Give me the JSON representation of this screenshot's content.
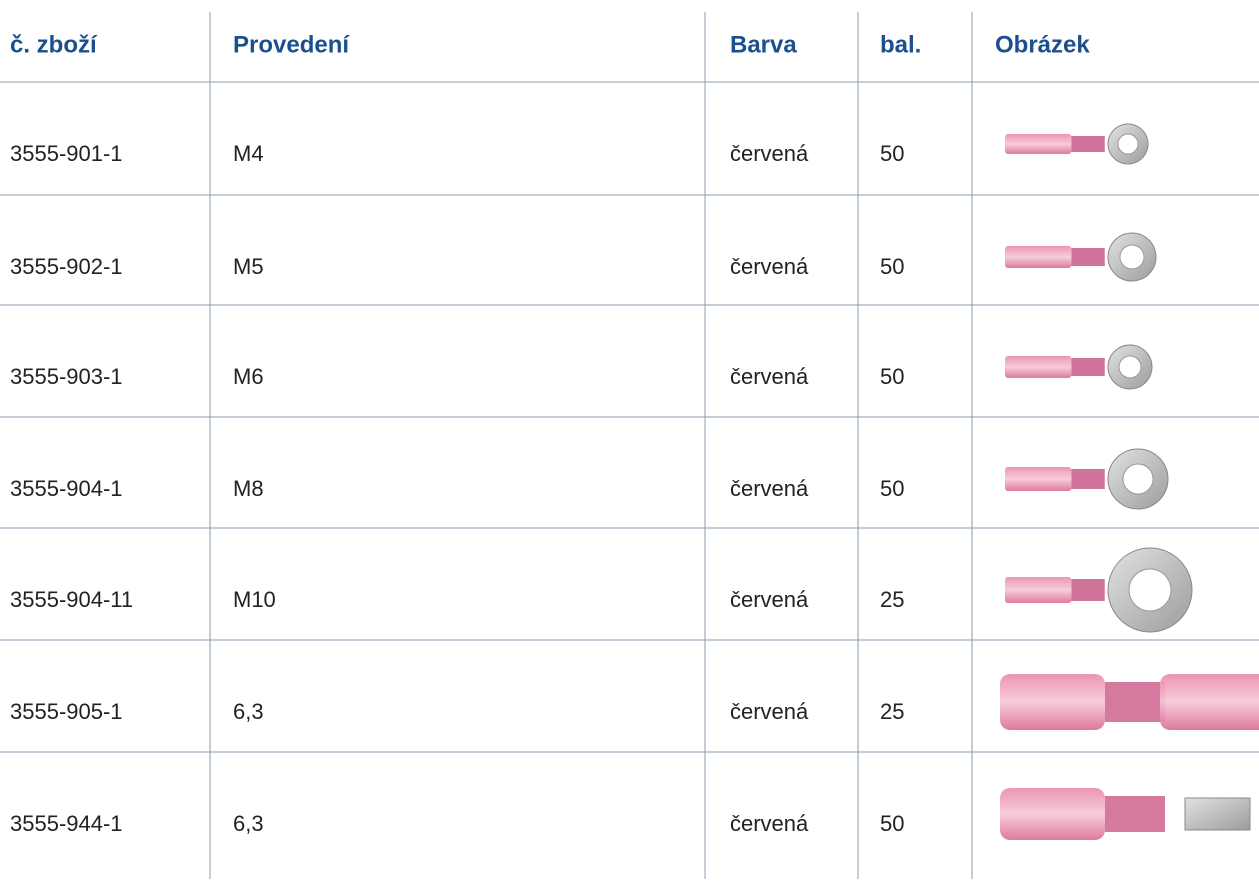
{
  "table": {
    "header": [
      "č. zboží",
      "Provedení",
      "Barva",
      "bal.",
      "Obrázek"
    ],
    "rows": [
      [
        "3555-901-1",
        "M4",
        "červená",
        50
      ],
      [
        "3555-902-1",
        "M5",
        "červená",
        50
      ],
      [
        "3555-903-1",
        "M6",
        "červená",
        50
      ],
      [
        "3555-904-1",
        "M8",
        "červená",
        50
      ],
      [
        "3555-904-11",
        "M10",
        "červená",
        25
      ],
      [
        "3555-905-1",
        "6,3",
        "červená",
        25
      ],
      [
        "3555-944-1",
        "6,3",
        "červená",
        50
      ]
    ]
  }
}
